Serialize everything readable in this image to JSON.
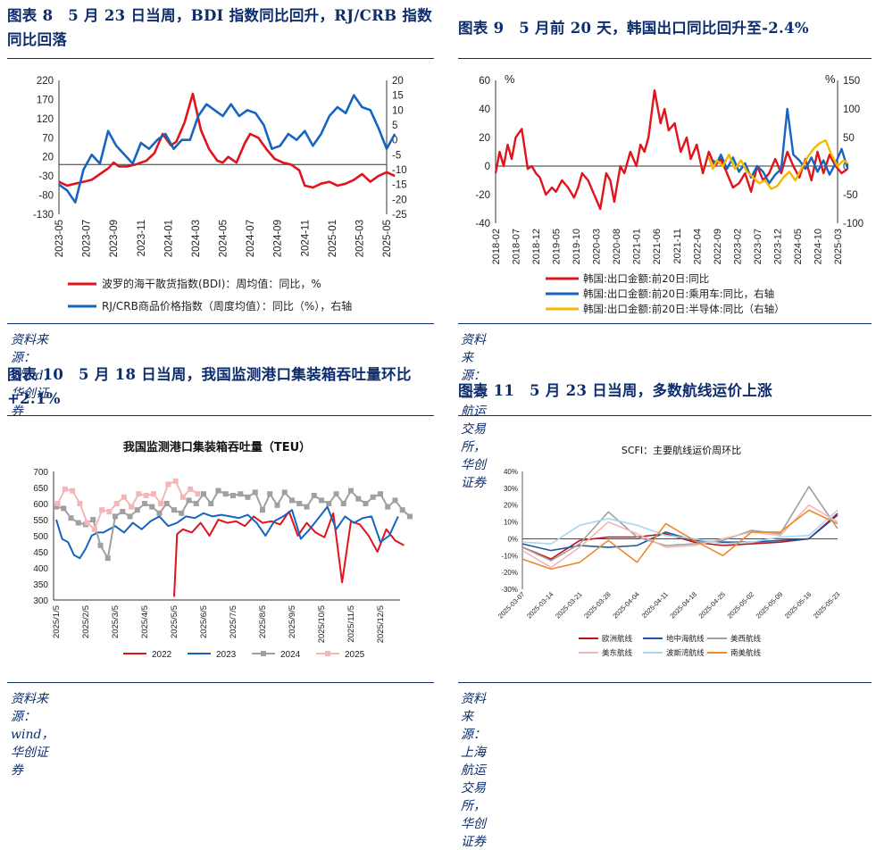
{
  "panels": [
    {
      "title": "图表 8　5 月 23 日当周，BDI 指数同比回升，RJ/CRB 指数同比回落",
      "source": "资料来源：Wind，华创证券"
    },
    {
      "title": "图表 9　5 月前 20 天，韩国出口同比回升至-2.4%",
      "source": "资料来源：上海航运交易所，华创证券"
    },
    {
      "title": "图表 10　5 月 18 日当周，我国监测港口集装箱吞吐量环比+2.1%",
      "source": "资料来源：wind，华创证券"
    },
    {
      "title": "图表 11　5 月 23 日当周，多数航线运价上涨",
      "source": "资料来源：上海航运交易所，华创证券"
    }
  ],
  "chart_data": [
    {
      "type": "line",
      "title": "",
      "y_left": {
        "min": -130,
        "max": 220,
        "ticks": [
          -130,
          -80,
          -30,
          20,
          70,
          120,
          170,
          220
        ]
      },
      "y_right": {
        "min": -25,
        "max": 20,
        "ticks": [
          -25,
          -20,
          -15,
          -10,
          -5,
          0,
          5,
          10,
          15,
          20
        ]
      },
      "x_ticks": [
        "2023-05",
        "2023-07",
        "2023-09",
        "2023-11",
        "2024-01",
        "2024-03",
        "2024-05",
        "2024-07",
        "2024-09",
        "2024-11",
        "2025-01",
        "2025-03",
        "2025-05"
      ],
      "series": [
        {
          "name": "波罗的海干散货指数(BDI)：周均值：同比，%",
          "color": "#e0141c",
          "axis": "left",
          "x": [
            0,
            0.3,
            0.6,
            0.9,
            1.2,
            1.5,
            1.8,
            2.0,
            2.2,
            2.5,
            2.8,
            3.2,
            3.5,
            3.8,
            4.1,
            4.3,
            4.6,
            4.9,
            5.2,
            5.5,
            5.8,
            6.0,
            6.2,
            6.5,
            6.8,
            7.0,
            7.3,
            7.6,
            7.9,
            8.2,
            8.5,
            8.8,
            9.0,
            9.3,
            9.6,
            9.9,
            10.2,
            10.5,
            10.8,
            11.1,
            11.4,
            11.7,
            12.0,
            12.3
          ],
          "y": [
            -45,
            -55,
            -50,
            -45,
            -40,
            -25,
            -10,
            5,
            -5,
            -5,
            0,
            10,
            30,
            80,
            50,
            60,
            110,
            185,
            90,
            40,
            10,
            5,
            20,
            5,
            55,
            80,
            70,
            40,
            15,
            5,
            0,
            -15,
            -55,
            -60,
            -50,
            -45,
            -55,
            -50,
            -40,
            -25,
            -45,
            -30,
            -20,
            -30
          ]
        },
        {
          "name": "RJ/CRB商品价格指数（周度均值）：同比（%），右轴",
          "color": "#1565c0",
          "axis": "right",
          "x": [
            0,
            0.3,
            0.6,
            0.9,
            1.2,
            1.5,
            1.8,
            2.1,
            2.4,
            2.7,
            3.0,
            3.3,
            3.6,
            3.9,
            4.2,
            4.5,
            4.8,
            5.1,
            5.4,
            5.7,
            6.0,
            6.3,
            6.6,
            6.9,
            7.2,
            7.5,
            7.8,
            8.1,
            8.4,
            8.7,
            9.0,
            9.3,
            9.6,
            9.9,
            10.2,
            10.5,
            10.8,
            11.1,
            11.4,
            11.7,
            12.0,
            12.3
          ],
          "y": [
            -15,
            -17,
            -21,
            -10,
            -5,
            -8,
            3,
            -2,
            -5,
            -8,
            -1,
            -3,
            0,
            2,
            -3,
            0,
            0,
            8,
            12,
            10,
            8,
            12,
            8,
            10,
            9,
            5,
            -3,
            -2,
            2,
            0,
            3,
            -2,
            2,
            8,
            11,
            9,
            15,
            11,
            10,
            4,
            -3,
            2
          ]
        }
      ]
    },
    {
      "type": "line",
      "title": "",
      "y_left": {
        "min": -40,
        "max": 60,
        "ticks": [
          -40,
          -20,
          0,
          20,
          40,
          60
        ],
        "unit": "%"
      },
      "y_right": {
        "min": -100,
        "max": 150,
        "ticks": [
          -100,
          -50,
          0,
          50,
          100,
          150
        ],
        "unit": "%"
      },
      "x_ticks": [
        "2018-02",
        "2018-07",
        "2018-12",
        "2019-05",
        "2019-10",
        "2020-03",
        "2020-08",
        "2021-01",
        "2021-06",
        "2021-11",
        "2022-04",
        "2022-09",
        "2023-02",
        "2023-07",
        "2023-12",
        "2024-05",
        "2024-10",
        "2025-03"
      ],
      "series": [
        {
          "name": "韩国:出口金额:前20日:同比",
          "color": "#e0141c",
          "axis": "left",
          "x": [
            0,
            0.2,
            0.4,
            0.6,
            0.8,
            1.0,
            1.3,
            1.6,
            1.8,
            2.0,
            2.2,
            2.5,
            2.8,
            3.0,
            3.3,
            3.6,
            3.9,
            4.1,
            4.3,
            4.6,
            4.9,
            5.2,
            5.5,
            5.7,
            5.9,
            6.2,
            6.4,
            6.7,
            7.0,
            7.2,
            7.4,
            7.6,
            7.9,
            8.2,
            8.4,
            8.6,
            8.9,
            9.2,
            9.5,
            9.7,
            10.0,
            10.3,
            10.6,
            10.9,
            11.2,
            11.5,
            11.8,
            12.1,
            12.4,
            12.7,
            13.0,
            13.3,
            13.6,
            13.9,
            14.2,
            14.5,
            14.8,
            15.1,
            15.4,
            15.7,
            16.0,
            16.3,
            16.6,
            16.9,
            17.2,
            17.5
          ],
          "y": [
            -5,
            10,
            0,
            15,
            5,
            20,
            26,
            -2,
            0,
            -5,
            -8,
            -20,
            -15,
            -18,
            -10,
            -15,
            -22,
            -15,
            -5,
            -10,
            -20,
            -30,
            -5,
            -10,
            -25,
            0,
            -5,
            10,
            0,
            15,
            10,
            20,
            53,
            30,
            40,
            25,
            30,
            10,
            20,
            5,
            15,
            -5,
            10,
            0,
            5,
            -5,
            -15,
            -12,
            -5,
            -18,
            0,
            -10,
            -5,
            5,
            -5,
            10,
            0,
            -8,
            5,
            -10,
            10,
            -5,
            8,
            0,
            -5,
            -2
          ]
        },
        {
          "name": "韩国:出口金额:前20日:乘用车:同比，右轴",
          "color": "#1565c0",
          "axis": "right",
          "x": [
            10.8,
            11.0,
            11.2,
            11.5,
            11.8,
            12.1,
            12.4,
            12.7,
            13.0,
            13.3,
            13.6,
            13.9,
            14.2,
            14.5,
            14.8,
            15.1,
            15.4,
            15.7,
            16.0,
            16.3,
            16.6,
            16.9,
            17.2,
            17.5
          ],
          "y": [
            10,
            5,
            20,
            -5,
            15,
            -10,
            5,
            -20,
            0,
            -10,
            -30,
            -15,
            -5,
            100,
            20,
            10,
            -5,
            15,
            -10,
            10,
            -15,
            5,
            30,
            -5
          ]
        },
        {
          "name": "韩国:出口金额:前20日:半导体:同比（右轴）",
          "color": "#f5b800",
          "axis": "right",
          "x": [
            10.6,
            10.8,
            11.0,
            11.3,
            11.6,
            11.9,
            12.2,
            12.5,
            12.8,
            13.1,
            13.4,
            13.7,
            14.0,
            14.3,
            14.6,
            14.9,
            15.2,
            15.5,
            15.8,
            16.1,
            16.4,
            16.7,
            17.0,
            17.3,
            17.5
          ],
          "y": [
            15,
            -5,
            10,
            0,
            20,
            -5,
            10,
            -10,
            -20,
            -30,
            -25,
            -40,
            -35,
            -20,
            -10,
            -25,
            -5,
            15,
            30,
            40,
            45,
            20,
            0,
            10,
            5
          ]
        }
      ]
    },
    {
      "type": "line",
      "title": "我国监测港口集装箱吞吐量（TEU）",
      "y": {
        "min": 300,
        "max": 700,
        "ticks": [
          300,
          350,
          400,
          450,
          500,
          550,
          600,
          650,
          700
        ]
      },
      "x_ticks": [
        "2025/1/5",
        "2025/2/5",
        "2025/3/5",
        "2025/4/5",
        "2025/5/5",
        "2025/6/5",
        "2025/7/5",
        "2025/8/5",
        "2025/9/5",
        "2025/10/5",
        "2025/11/5",
        "2025/12/5"
      ],
      "series": [
        {
          "name": "2022",
          "color": "#e0141c",
          "marker": "none",
          "x": [
            4.0,
            4.1,
            4.3,
            4.6,
            4.9,
            5.2,
            5.5,
            5.8,
            6.1,
            6.4,
            6.7,
            7.0,
            7.3,
            7.6,
            7.9,
            8.2,
            8.5,
            8.8,
            9.1,
            9.4,
            9.7,
            10.0,
            10.3,
            10.6,
            10.9,
            11.2,
            11.5,
            11.8
          ],
          "y": [
            310,
            505,
            520,
            510,
            540,
            500,
            550,
            540,
            545,
            530,
            560,
            540,
            545,
            535,
            575,
            500,
            540,
            510,
            495,
            570,
            355,
            545,
            535,
            500,
            450,
            520,
            485,
            470
          ]
        },
        {
          "name": "2023",
          "color": "#1565c0",
          "marker": "none",
          "x": [
            0,
            0.2,
            0.4,
            0.6,
            0.8,
            1.0,
            1.2,
            1.4,
            1.6,
            1.8,
            2.0,
            2.3,
            2.6,
            2.9,
            3.2,
            3.5,
            3.8,
            4.1,
            4.4,
            4.7,
            5.0,
            5.3,
            5.6,
            5.9,
            6.2,
            6.5,
            6.8,
            7.1,
            7.4,
            7.7,
            8.0,
            8.3,
            8.6,
            8.9,
            9.2,
            9.5,
            9.8,
            10.1,
            10.4,
            10.7,
            11.0,
            11.3,
            11.6
          ],
          "y": [
            550,
            490,
            480,
            440,
            430,
            460,
            500,
            510,
            510,
            520,
            530,
            510,
            540,
            520,
            545,
            560,
            530,
            540,
            560,
            555,
            570,
            560,
            565,
            560,
            555,
            565,
            540,
            500,
            545,
            560,
            580,
            490,
            520,
            555,
            590,
            520,
            560,
            540,
            555,
            560,
            480,
            500,
            560
          ]
        },
        {
          "name": "2024",
          "color": "#a0a0a0",
          "marker": "square",
          "x": [
            0,
            0.25,
            0.5,
            0.75,
            1.0,
            1.25,
            1.5,
            1.75,
            2.0,
            2.25,
            2.5,
            2.75,
            3.0,
            3.25,
            3.5,
            3.75,
            4.0,
            4.25,
            4.5,
            4.75,
            5.0,
            5.25,
            5.5,
            5.75,
            6.0,
            6.25,
            6.5,
            6.75,
            7.0,
            7.25,
            7.5,
            7.75,
            8.0,
            8.25,
            8.5,
            8.75,
            9.0,
            9.25,
            9.5,
            9.75,
            10.0,
            10.25,
            10.5,
            10.75,
            11.0,
            11.25,
            11.5,
            11.75,
            12.0
          ],
          "y": [
            590,
            585,
            555,
            540,
            535,
            550,
            470,
            430,
            560,
            575,
            560,
            580,
            600,
            590,
            570,
            600,
            580,
            570,
            610,
            600,
            630,
            600,
            640,
            630,
            625,
            630,
            620,
            635,
            580,
            630,
            595,
            635,
            610,
            600,
            590,
            625,
            610,
            600,
            630,
            600,
            640,
            615,
            600,
            620,
            630,
            590,
            610,
            580,
            560
          ]
        },
        {
          "name": "2025",
          "color": "#f4b6b6",
          "marker": "square",
          "x": [
            0.05,
            0.3,
            0.55,
            0.8,
            1.05,
            1.3,
            1.55,
            1.8,
            2.05,
            2.3,
            2.55,
            2.8,
            3.05,
            3.3,
            3.55,
            3.8,
            4.05,
            4.3,
            4.55,
            4.8
          ],
          "y": [
            600,
            645,
            640,
            600,
            540,
            520,
            580,
            575,
            600,
            620,
            590,
            630,
            625,
            630,
            600,
            660,
            670,
            620,
            645,
            630
          ]
        }
      ]
    },
    {
      "type": "line",
      "title": "SCFI：主要航线运价周环比",
      "y": {
        "min": -0.3,
        "max": 0.4,
        "ticks": [
          "-30%",
          "-20%",
          "-10%",
          "0%",
          "10%",
          "20%",
          "30%",
          "40%"
        ]
      },
      "x_ticks": [
        "2025-03-07",
        "2025-03-14",
        "2025-03-21",
        "2025-03-28",
        "2025-04-04",
        "2025-04-11",
        "2025-04-18",
        "2025-04-25",
        "2025-05-02",
        "2025-05-09",
        "2025-05-16",
        "2025-05-23"
      ],
      "series": [
        {
          "name": "欧洲航线",
          "color": "#c0141c",
          "y": [
            -0.05,
            -0.12,
            -0.01,
            0.01,
            0.01,
            0.03,
            -0.02,
            -0.04,
            -0.03,
            -0.02,
            0.0,
            0.15
          ]
        },
        {
          "name": "地中海航线",
          "color": "#1e56a0",
          "y": [
            -0.03,
            -0.07,
            -0.04,
            -0.05,
            -0.04,
            0.04,
            -0.01,
            -0.02,
            -0.02,
            -0.01,
            0.0,
            0.14
          ]
        },
        {
          "name": "美西航线",
          "color": "#a0a0a0",
          "y": [
            -0.05,
            -0.13,
            -0.03,
            0.16,
            0.01,
            -0.04,
            -0.03,
            -0.01,
            0.05,
            0.03,
            0.31,
            0.06
          ]
        },
        {
          "name": "美东航线",
          "color": "#f2b8b4",
          "y": [
            -0.07,
            -0.17,
            -0.05,
            0.1,
            0.03,
            -0.05,
            -0.04,
            0.0,
            0.04,
            0.02,
            0.2,
            0.1
          ]
        },
        {
          "name": "波斯湾航线",
          "color": "#a8d8ee",
          "y": [
            -0.02,
            -0.03,
            0.08,
            0.12,
            0.08,
            0.02,
            0.0,
            -0.03,
            -0.02,
            0.01,
            0.02,
            0.17
          ]
        },
        {
          "name": "南美航线",
          "color": "#f0882a",
          "y": [
            -0.12,
            -0.18,
            -0.14,
            -0.01,
            -0.14,
            0.09,
            -0.01,
            -0.1,
            0.04,
            0.04,
            0.17,
            0.09
          ]
        }
      ]
    }
  ]
}
